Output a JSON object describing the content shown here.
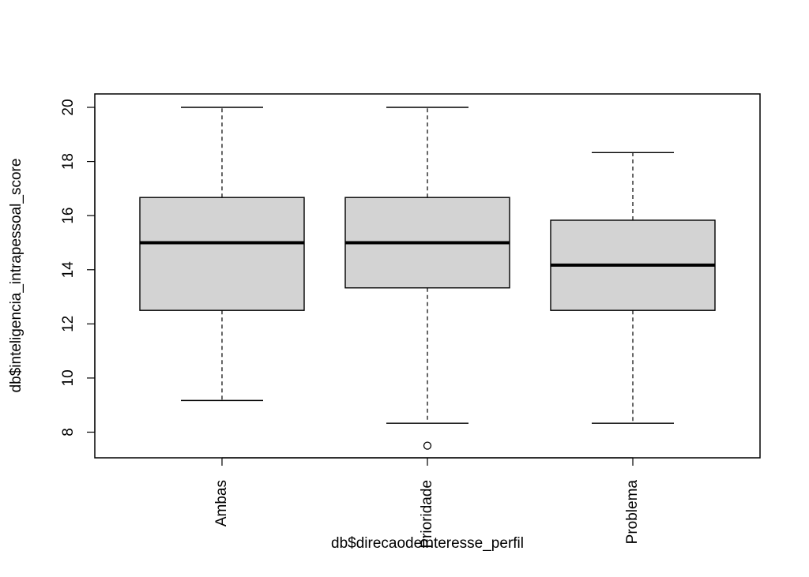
{
  "chart_data": {
    "type": "boxplot",
    "title": "",
    "xlabel": "db$direcaodeinteresse_perfil",
    "ylabel": "db$inteligencia_intrapessoal_score",
    "ylim": [
      7.0,
      20.5
    ],
    "yticks": [
      8,
      10,
      12,
      14,
      16,
      18,
      20
    ],
    "categories": [
      "Ambas",
      "Prioridade",
      "Problema"
    ],
    "boxes": [
      {
        "category": "Ambas",
        "whisker_low": 9.17,
        "q1": 12.5,
        "median": 15.0,
        "q3": 16.67,
        "whisker_high": 20.0,
        "outliers": []
      },
      {
        "category": "Prioridade",
        "whisker_low": 8.33,
        "q1": 13.33,
        "median": 15.0,
        "q3": 16.67,
        "whisker_high": 20.0,
        "outliers": [
          7.5
        ]
      },
      {
        "category": "Problema",
        "whisker_low": 8.33,
        "q1": 12.5,
        "median": 14.17,
        "q3": 15.83,
        "whisker_high": 18.33,
        "outliers": []
      }
    ],
    "box_fill": "#d3d3d3",
    "line_color": "#000000",
    "grid": false,
    "legend": "none"
  }
}
